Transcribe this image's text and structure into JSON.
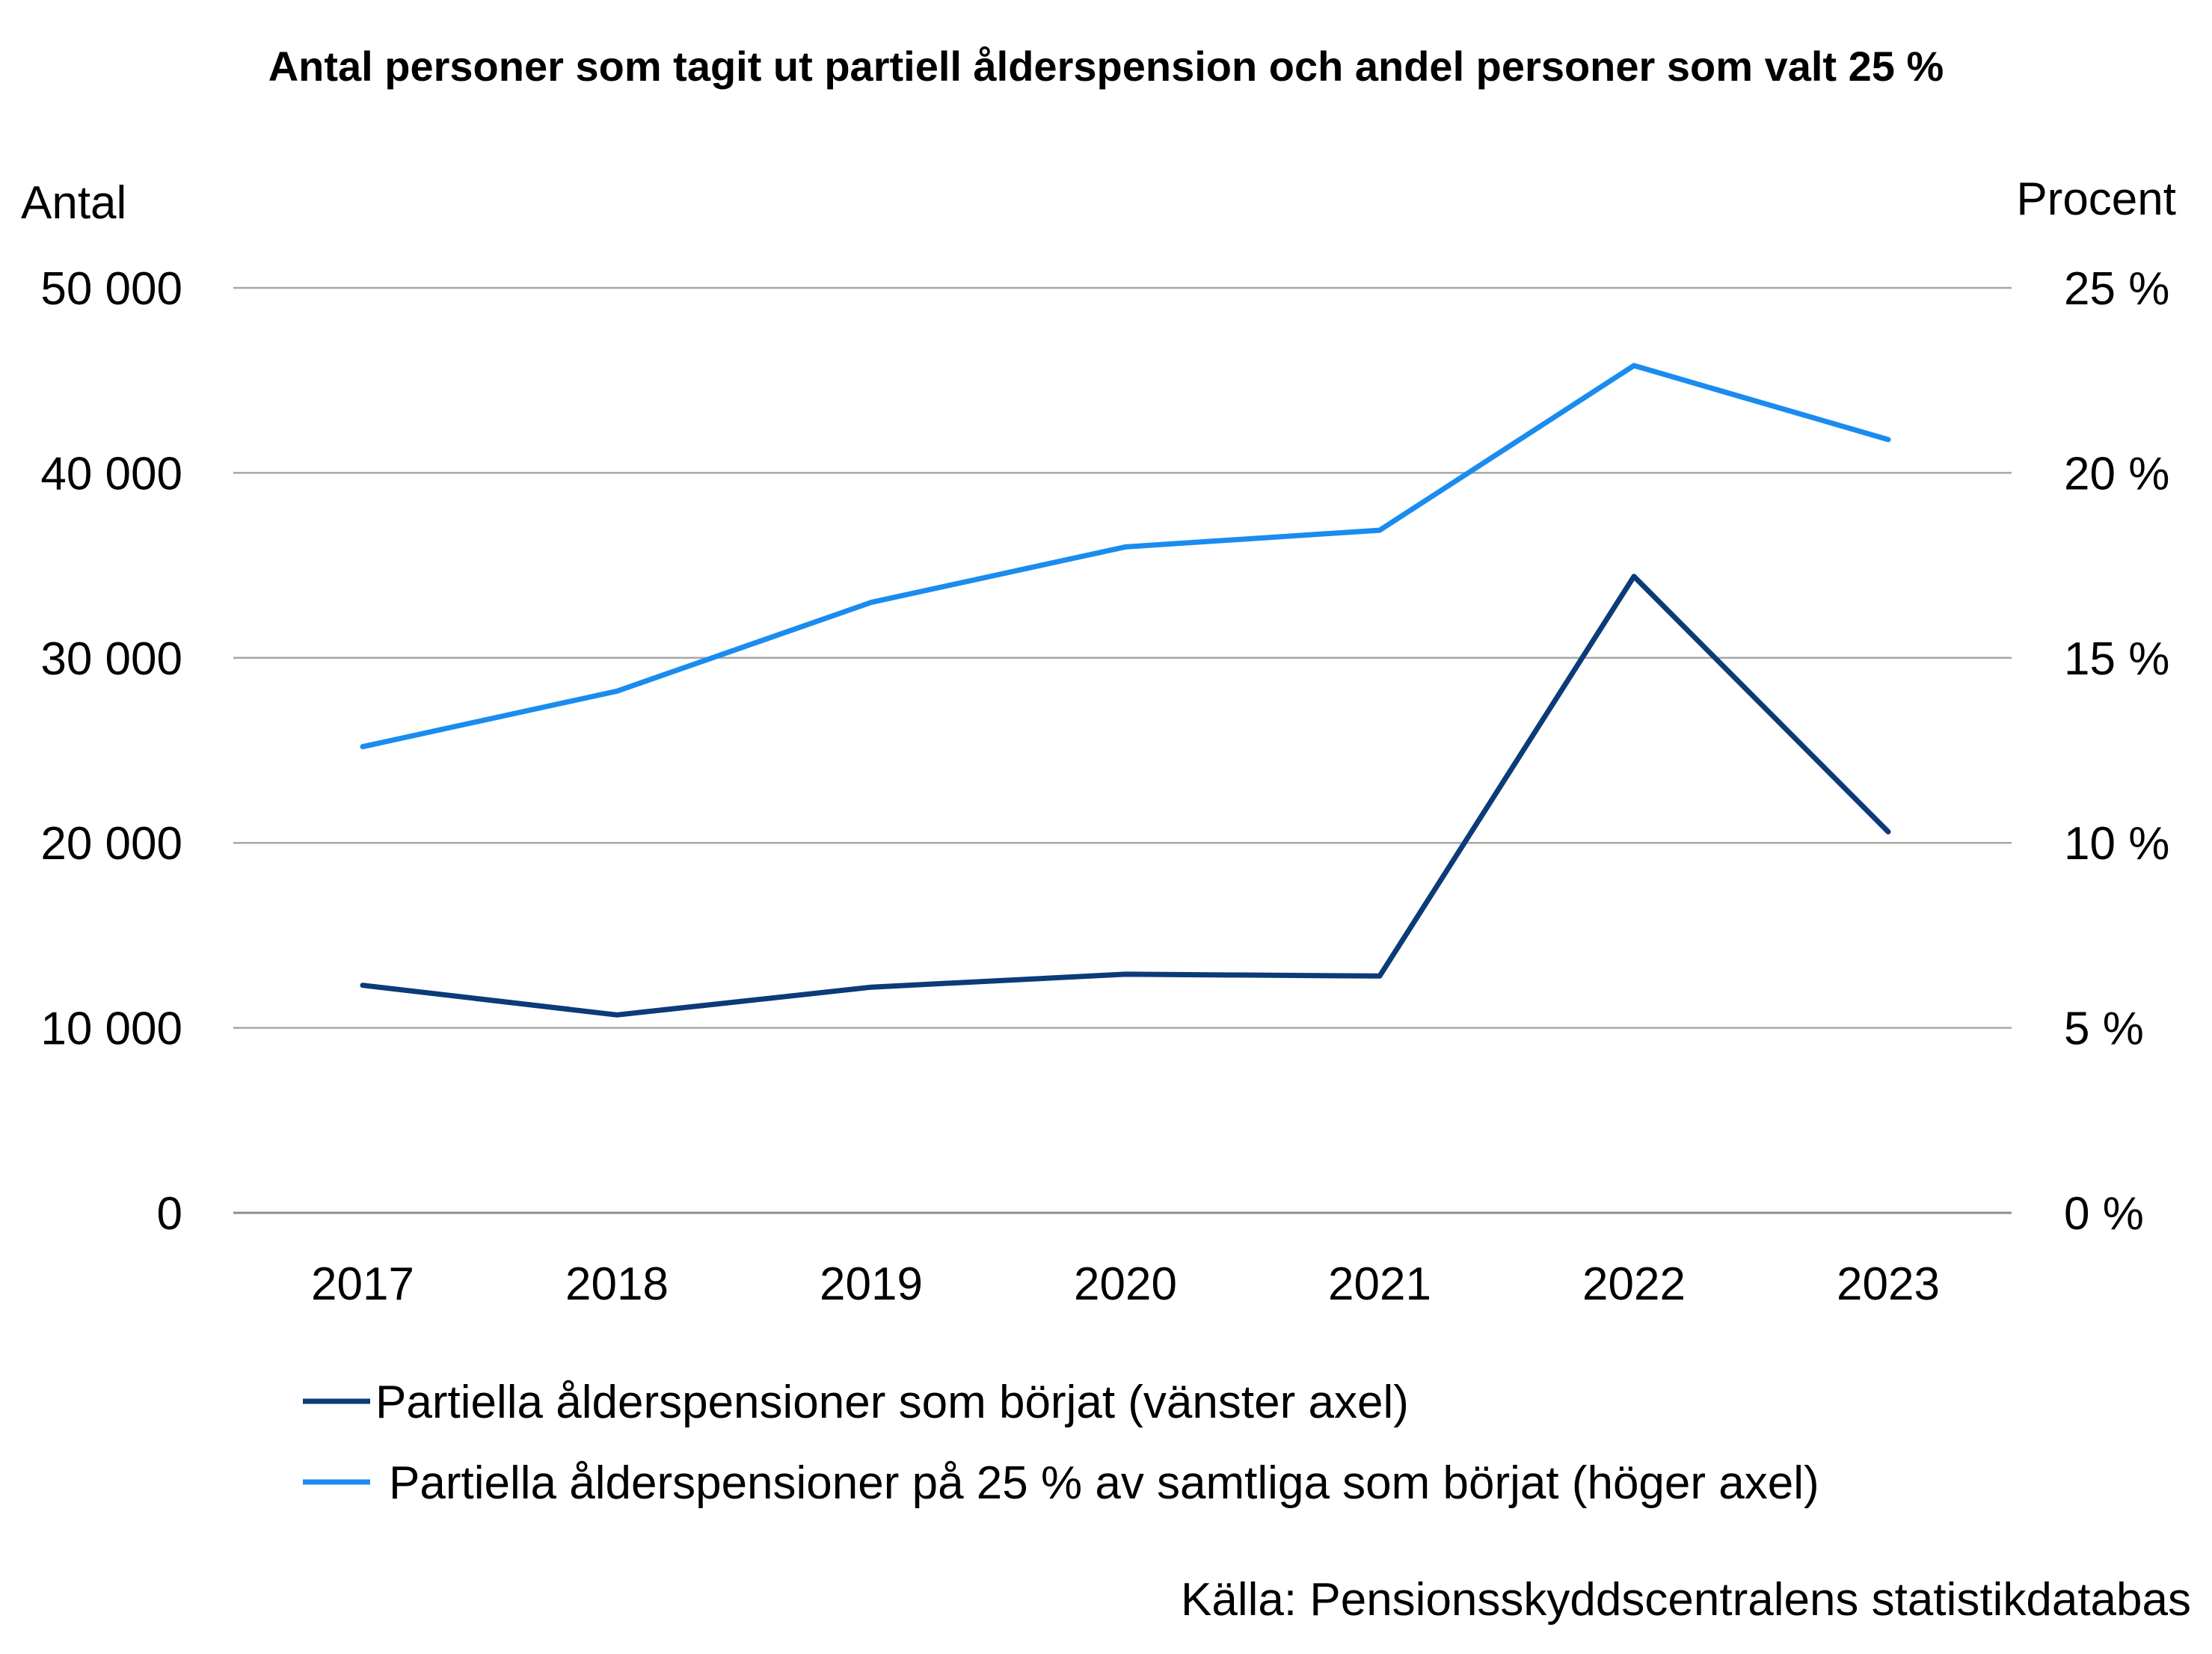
{
  "chart_data": {
    "type": "line",
    "title": "Antal personer som tagit ut partiell ålderspension och andel personer som valt 25 %",
    "left_axis_label": "Antal",
    "right_axis_label": "Procent",
    "categories": [
      "2017",
      "2018",
      "2019",
      "2020",
      "2021",
      "2022",
      "2023"
    ],
    "left_ylim": [
      0,
      50000
    ],
    "left_ticks": [
      0,
      10000,
      20000,
      30000,
      40000,
      50000
    ],
    "left_tick_labels": [
      "0",
      "10 000",
      "20 000",
      "30 000",
      "40 000",
      "50 000"
    ],
    "right_ylim": [
      0,
      25
    ],
    "right_ticks": [
      0,
      5,
      10,
      15,
      20,
      25
    ],
    "right_tick_labels": [
      "0 %",
      "5 %",
      "10 %",
      "15 %",
      "20 %",
      "25 %"
    ],
    "grid": "horizontal",
    "legend_position": "bottom",
    "series": [
      {
        "name": "Partiella ålderspensioner som börjat (vänster axel)",
        "axis": "left",
        "color": "#0b3b78",
        "values": [
          12300,
          10700,
          12200,
          12900,
          12800,
          34400,
          20600
        ]
      },
      {
        "name": "Partiella ålderspensioner på 25 % av samtliga som börjat (höger axel)",
        "axis": "right",
        "color": "#1a8cf0",
        "values": [
          12.6,
          14.1,
          16.5,
          18.0,
          18.45,
          22.9,
          20.9
        ]
      }
    ],
    "source": "Källa: Pensionsskyddscentralens statistikdatabas"
  }
}
